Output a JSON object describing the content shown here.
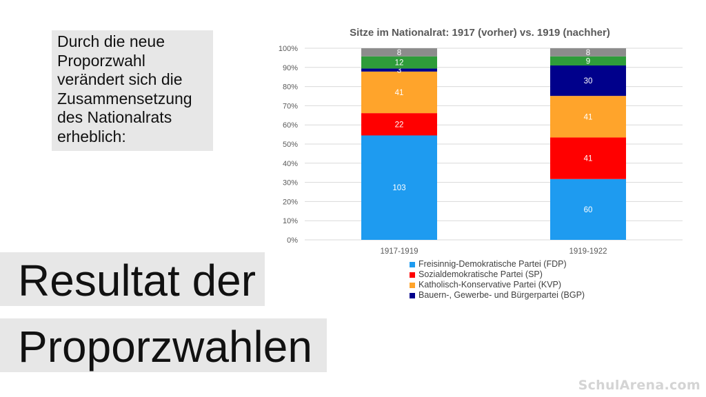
{
  "slide": {
    "intro_text": "Durch die neue Proporzwahl verändert sich die Zusammensetzung des Nationalrats erheblich:",
    "title_line1": "Resultat der",
    "title_line2": "Proporzwahlen",
    "watermark": "SchulArena.com"
  },
  "chart_data": {
    "type": "bar",
    "stacked": "percent",
    "title": "Sitze im Nationalrat: 1917 (vorher) vs. 1919 (nachher)",
    "categories": [
      "1917-1919",
      "1919-1922"
    ],
    "y_ticks": [
      "0%",
      "10%",
      "20%",
      "30%",
      "40%",
      "50%",
      "60%",
      "70%",
      "80%",
      "90%",
      "100%"
    ],
    "ylim": [
      0,
      100
    ],
    "legend_position": "bottom",
    "series": [
      {
        "name": "Freisinnig-Demokratische Partei (FDP)",
        "color": "#1e9bf0",
        "values": [
          103,
          60
        ],
        "in_legend": true
      },
      {
        "name": "Sozialdemokratische Partei (SP)",
        "color": "#ff0000",
        "values": [
          22,
          41
        ],
        "in_legend": true
      },
      {
        "name": "Katholisch-Konservative Partei (KVP)",
        "color": "#ffa42b",
        "values": [
          41,
          41
        ],
        "in_legend": true
      },
      {
        "name": "Bauern-, Gewerbe- und Bürgerpartei (BGP)",
        "color": "#00008b",
        "values": [
          3,
          30
        ],
        "in_legend": true
      },
      {
        "name": "",
        "color": "#2e9c3a",
        "values": [
          12,
          9
        ],
        "in_legend": false
      },
      {
        "name": "",
        "color": "#8c8c8c",
        "values": [
          8,
          8
        ],
        "in_legend": false
      }
    ]
  }
}
